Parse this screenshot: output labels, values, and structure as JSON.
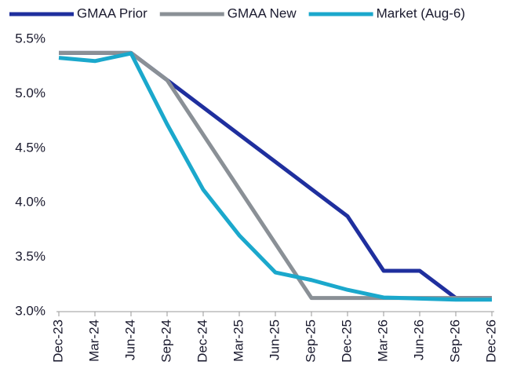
{
  "chart_data": {
    "type": "line",
    "categories": [
      "Dec-23",
      "Mar-24",
      "Jun-24",
      "Sep-24",
      "Dec-24",
      "Mar-25",
      "Jun-25",
      "Sep-25",
      "Dec-25",
      "Mar-26",
      "Jun-26",
      "Sep-26",
      "Dec-26"
    ],
    "series": [
      {
        "name": "GMAA Prior",
        "color": "#1f2f9e",
        "values": [
          5.375,
          5.375,
          5.375,
          5.125,
          4.875,
          4.625,
          4.375,
          4.125,
          3.875,
          3.375,
          3.375,
          3.125,
          3.125
        ]
      },
      {
        "name": "GMAA New",
        "color": "#8a9096",
        "values": [
          5.375,
          5.375,
          5.375,
          5.125,
          4.625,
          4.125,
          3.625,
          3.125,
          3.125,
          3.125,
          3.125,
          3.125,
          3.125
        ]
      },
      {
        "name": "Market (Aug-6)",
        "color": "#1ba8cc",
        "values": [
          5.33,
          5.3,
          5.37,
          4.72,
          4.12,
          3.7,
          3.36,
          3.29,
          3.2,
          3.13,
          3.12,
          3.11,
          3.11
        ]
      }
    ],
    "ylim": [
      3.0,
      5.5
    ],
    "yticks": [
      {
        "value": 3.0,
        "label": "3.0%"
      },
      {
        "value": 3.5,
        "label": "3.5%"
      },
      {
        "value": 4.0,
        "label": "4.0%"
      },
      {
        "value": 4.5,
        "label": "4.5%"
      },
      {
        "value": 5.0,
        "label": "5.0%"
      },
      {
        "value": 5.5,
        "label": "5.5%"
      }
    ],
    "legend": "top"
  }
}
